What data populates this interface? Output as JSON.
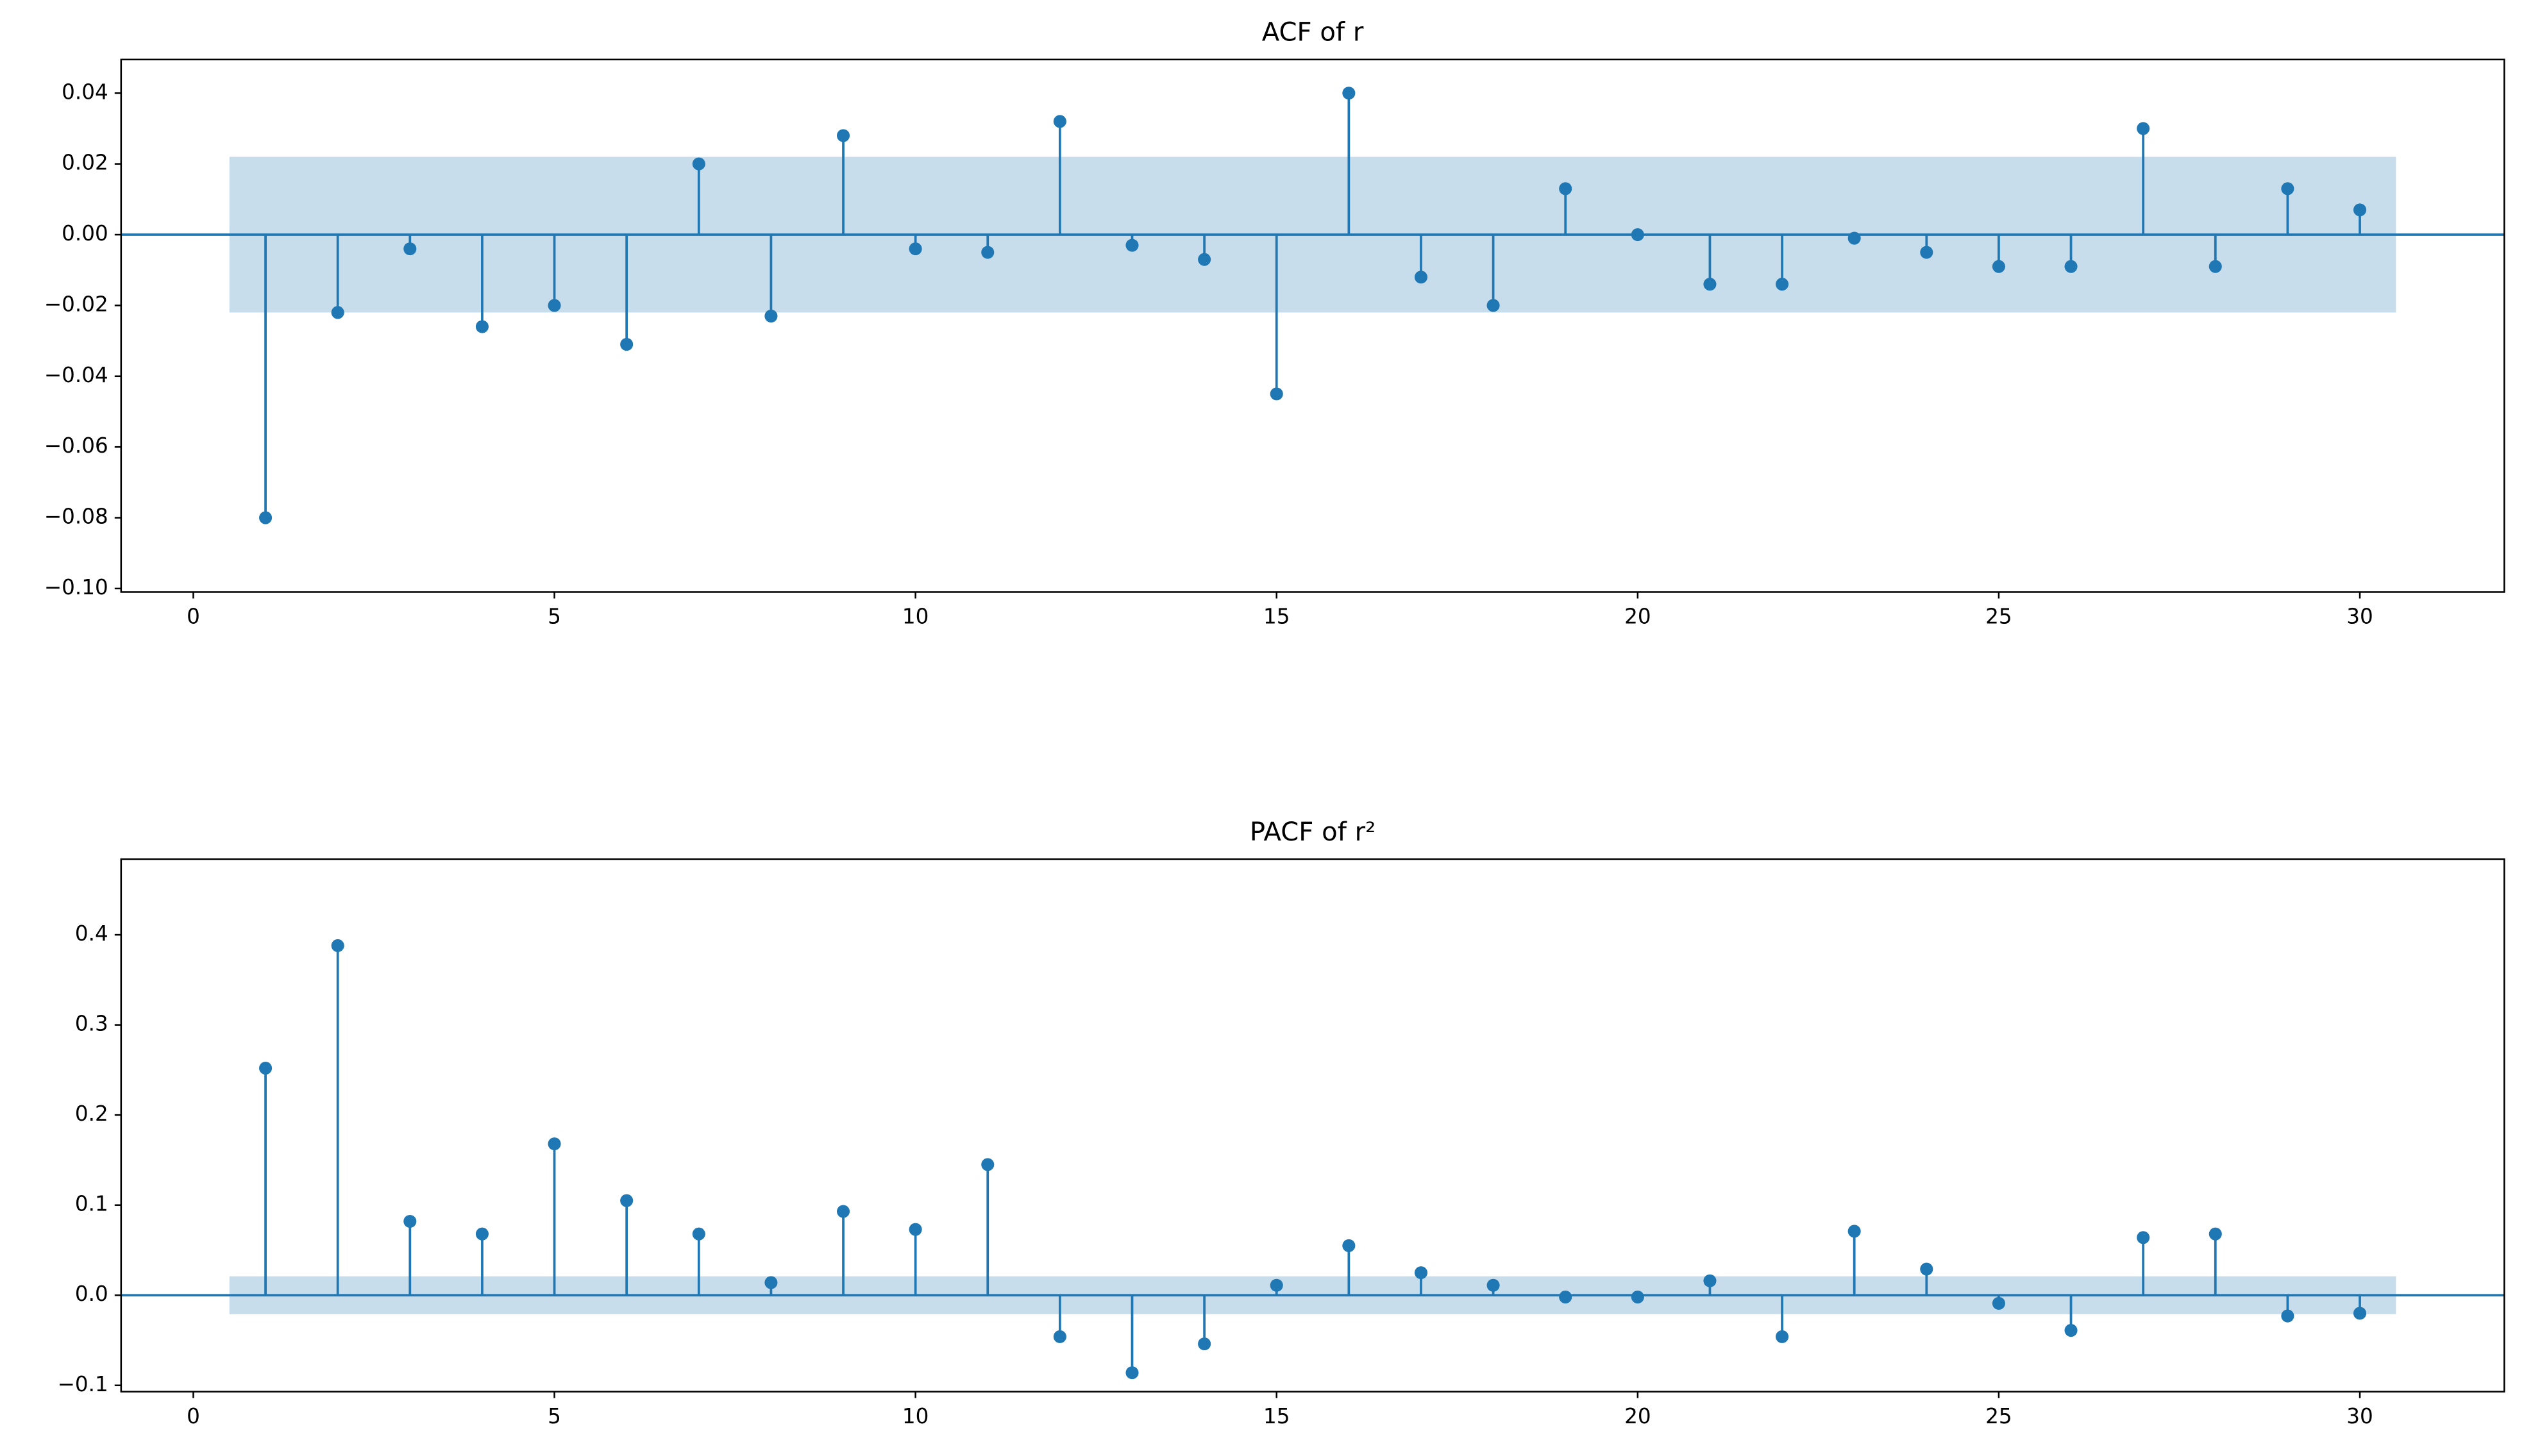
{
  "chart_data": [
    {
      "type": "stem",
      "title": "ACF of r",
      "color": "#1f77b4",
      "x": [
        1,
        2,
        3,
        4,
        5,
        6,
        7,
        8,
        9,
        10,
        11,
        12,
        13,
        14,
        15,
        16,
        17,
        18,
        19,
        20,
        21,
        22,
        23,
        24,
        25,
        26,
        27,
        28,
        29,
        30
      ],
      "values": [
        -0.08,
        -0.022,
        -0.004,
        -0.026,
        -0.02,
        -0.031,
        0.02,
        -0.023,
        0.028,
        -0.004,
        -0.005,
        0.032,
        -0.003,
        -0.007,
        -0.045,
        0.04,
        -0.012,
        -0.02,
        0.013,
        0.0,
        -0.014,
        -0.014,
        -0.001,
        -0.005,
        -0.009,
        -0.009,
        0.03,
        -0.009,
        0.013,
        0.007
      ],
      "confidence_band": [
        -0.022,
        0.022
      ],
      "xlim": [
        -1,
        32
      ],
      "ylim": [
        -0.101,
        0.0495
      ],
      "xticks": [
        0,
        5,
        10,
        15,
        20,
        25,
        30
      ],
      "yticks": [
        {
          "value": -0.1,
          "label": "−0.10"
        },
        {
          "value": -0.08,
          "label": "−0.08"
        },
        {
          "value": -0.06,
          "label": "−0.06"
        },
        {
          "value": -0.04,
          "label": "−0.04"
        },
        {
          "value": -0.02,
          "label": "−0.02"
        },
        {
          "value": 0,
          "label": "0.00"
        },
        {
          "value": 0.02,
          "label": "0.02"
        },
        {
          "value": 0.04,
          "label": "0.04"
        }
      ]
    },
    {
      "type": "stem",
      "title": "PACF of r²",
      "color": "#1f77b4",
      "x": [
        1,
        2,
        3,
        4,
        5,
        6,
        7,
        8,
        9,
        10,
        11,
        12,
        13,
        14,
        15,
        16,
        17,
        18,
        19,
        20,
        21,
        22,
        23,
        24,
        25,
        26,
        27,
        28,
        29,
        30
      ],
      "values": [
        0.252,
        0.388,
        0.082,
        0.068,
        0.168,
        0.105,
        0.068,
        0.014,
        0.093,
        0.073,
        0.145,
        -0.046,
        -0.086,
        -0.054,
        0.011,
        0.055,
        0.025,
        0.011,
        -0.002,
        -0.002,
        0.016,
        -0.046,
        0.071,
        0.029,
        -0.009,
        -0.039,
        0.064,
        0.068,
        -0.023,
        -0.02
      ],
      "confidence_band": [
        -0.021,
        0.021
      ],
      "xlim": [
        -1,
        32
      ],
      "ylim": [
        -0.107,
        0.484
      ],
      "xticks": [
        0,
        5,
        10,
        15,
        20,
        25,
        30
      ],
      "yticks": [
        {
          "value": -0.1,
          "label": "−0.1"
        },
        {
          "value": 0,
          "label": "0.0"
        },
        {
          "value": 0.1,
          "label": "0.1"
        },
        {
          "value": 0.2,
          "label": "0.2"
        },
        {
          "value": 0.3,
          "label": "0.3"
        },
        {
          "value": 0.4,
          "label": "0.4"
        }
      ]
    }
  ]
}
